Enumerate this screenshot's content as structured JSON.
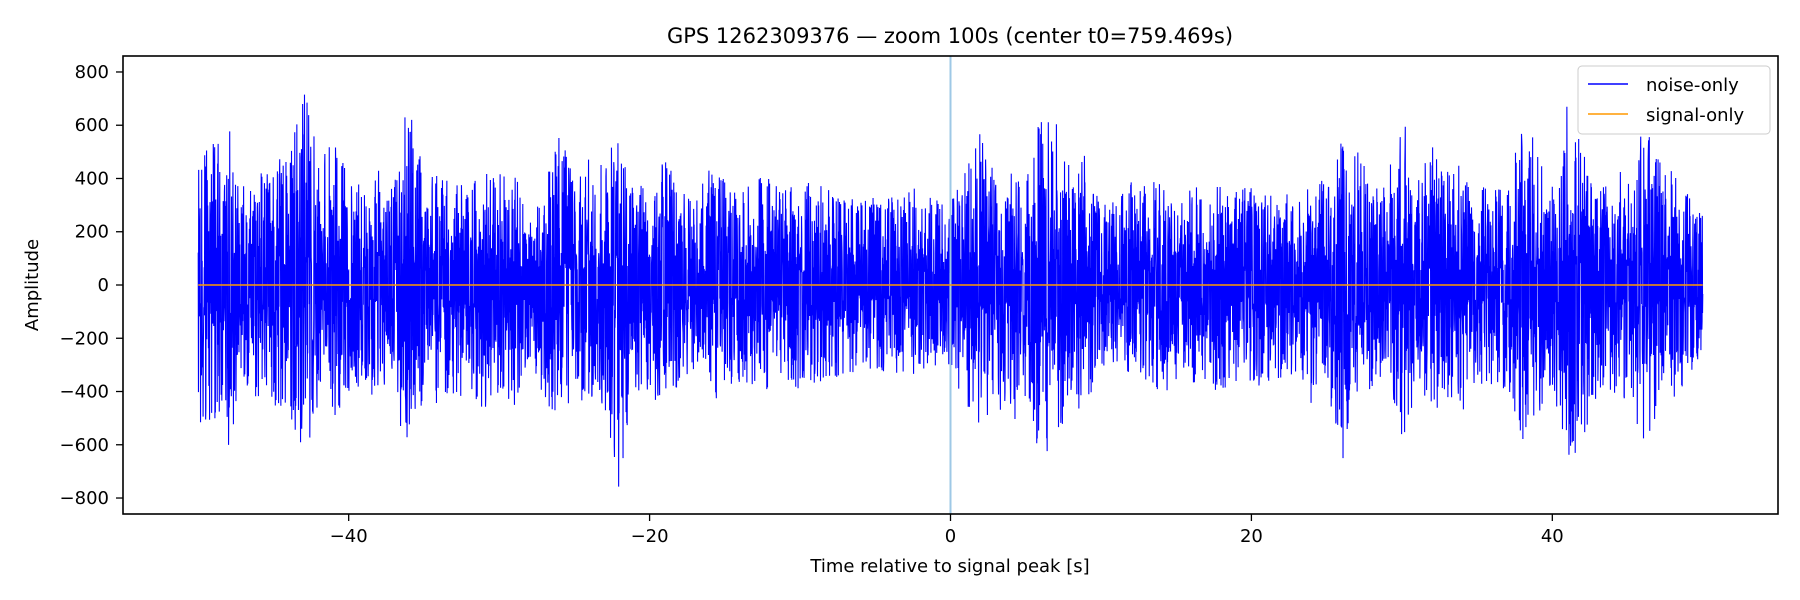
{
  "chart_data": {
    "type": "line",
    "title": "GPS 1262309376 — zoom 100s (center t0=759.469s)",
    "xlabel": "Time relative to signal peak [s]",
    "ylabel": "Amplitude",
    "xlim": [
      -55,
      55
    ],
    "ylim": [
      -860,
      860
    ],
    "xticks": [
      -40,
      -20,
      0,
      20,
      40
    ],
    "xtick_labels": [
      "−40",
      "−20",
      "0",
      "20",
      "40"
    ],
    "yticks": [
      -800,
      -600,
      -400,
      -200,
      0,
      200,
      400,
      600,
      800
    ],
    "ytick_labels": [
      "−800",
      "−600",
      "−400",
      "−200",
      "0",
      "200",
      "400",
      "600",
      "800"
    ],
    "grid": false,
    "legend_position": "top-right",
    "peak_marker": {
      "x": 0,
      "color": "#9ec8e6"
    },
    "series": [
      {
        "name": "noise-only",
        "color": "#0000ff",
        "x_range": [
          -50,
          50
        ],
        "approx_envelope": {
          "x": [
            -50,
            -49,
            -48,
            -47,
            -46,
            -45,
            -44,
            -43,
            -42,
            -41,
            -40,
            -39,
            -38,
            -37,
            -36,
            -35,
            -34,
            -33,
            -32,
            -31,
            -30,
            -29,
            -28,
            -27,
            -26,
            -25,
            -24,
            -23,
            -22,
            -21,
            -20,
            -19,
            -18,
            -17,
            -16,
            -15,
            -14,
            -13,
            -12,
            -11,
            -10,
            -9,
            -8,
            -7,
            -6,
            -5,
            -4,
            -3,
            -2,
            -1,
            0,
            1,
            2,
            3,
            4,
            5,
            6,
            7,
            8,
            9,
            10,
            11,
            12,
            13,
            14,
            15,
            16,
            17,
            18,
            19,
            20,
            21,
            22,
            23,
            24,
            25,
            26,
            27,
            28,
            29,
            30,
            31,
            32,
            33,
            34,
            35,
            36,
            37,
            38,
            39,
            40,
            41,
            42,
            43,
            44,
            45,
            46,
            47,
            48,
            49,
            50
          ],
          "upper": [
            530,
            530,
            600,
            370,
            420,
            450,
            540,
            750,
            480,
            590,
            420,
            360,
            470,
            360,
            760,
            400,
            450,
            420,
            400,
            460,
            420,
            470,
            300,
            420,
            620,
            420,
            480,
            510,
            560,
            400,
            420,
            480,
            360,
            320,
            440,
            410,
            380,
            400,
            410,
            380,
            390,
            380,
            380,
            330,
            320,
            330,
            330,
            380,
            350,
            330,
            310,
            430,
            590,
            410,
            430,
            380,
            640,
            640,
            460,
            510,
            300,
            330,
            420,
            380,
            400,
            330,
            420,
            370,
            410,
            370,
            380,
            410,
            360,
            330,
            470,
            390,
            670,
            520,
            380,
            390,
            660,
            380,
            530,
            440,
            470,
            380,
            380,
            370,
            600,
            560,
            390,
            720,
            580,
            440,
            400,
            460,
            610,
            510,
            440,
            350,
            340
          ],
          "lower": [
            -520,
            -520,
            -610,
            -380,
            -430,
            -450,
            -480,
            -680,
            -460,
            -520,
            -420,
            -380,
            -450,
            -380,
            -720,
            -420,
            -450,
            -430,
            -400,
            -470,
            -430,
            -460,
            -300,
            -420,
            -580,
            -420,
            -470,
            -450,
            -790,
            -400,
            -410,
            -480,
            -360,
            -340,
            -430,
            -420,
            -380,
            -400,
            -390,
            -380,
            -390,
            -370,
            -360,
            -340,
            -330,
            -320,
            -330,
            -340,
            -330,
            -340,
            -310,
            -470,
            -560,
            -440,
            -570,
            -420,
            -720,
            -600,
            -450,
            -480,
            -300,
            -320,
            -400,
            -390,
            -440,
            -360,
            -400,
            -380,
            -410,
            -370,
            -380,
            -380,
            -360,
            -330,
            -460,
            -390,
            -670,
            -500,
            -380,
            -370,
            -630,
            -380,
            -500,
            -420,
            -500,
            -380,
            -390,
            -390,
            -620,
            -560,
            -390,
            -680,
            -620,
            -450,
            -400,
            -460,
            -590,
            -520,
            -440,
            -350,
            -250
          ]
        }
      },
      {
        "name": "signal-only",
        "color": "#ff9900",
        "x": [
          -50,
          50
        ],
        "y": [
          0,
          0
        ]
      }
    ]
  }
}
